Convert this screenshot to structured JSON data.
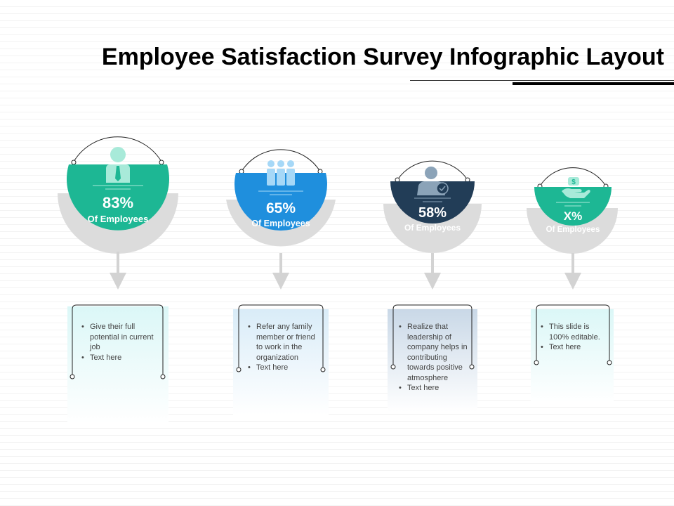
{
  "title": "Employee Satisfaction Survey Infographic Layout",
  "colors": {
    "teal": "#1db794",
    "blue": "#1f8fdd",
    "navy": "#223d57",
    "arc_gray": "#dcdcdc",
    "arrow_gray": "#d3d3d3"
  },
  "stats": [
    {
      "value": "83%",
      "label": "Of Employees",
      "icon": "person-with-tie-icon",
      "color": "#1db794",
      "bullets": [
        "Give their full potential in current job",
        "Text here"
      ]
    },
    {
      "value": "65%",
      "label": "Of Employees",
      "icon": "group-of-people-icon",
      "color": "#1f8fdd",
      "bullets": [
        "Refer any family member or friend to work in the organization",
        "Text here"
      ]
    },
    {
      "value": "58%",
      "label": "Of Employees",
      "icon": "person-with-checkmark-icon",
      "color": "#223d57",
      "bullets": [
        "Realize that leadership of company helps in contributing towards positive atmosphere",
        "Text here"
      ]
    },
    {
      "value": "X%",
      "label": "Of Employees",
      "icon": "hand-holding-dollar-icon",
      "color": "#1db794",
      "bullets": [
        "This slide is 100% editable.",
        "Text here"
      ]
    }
  ]
}
